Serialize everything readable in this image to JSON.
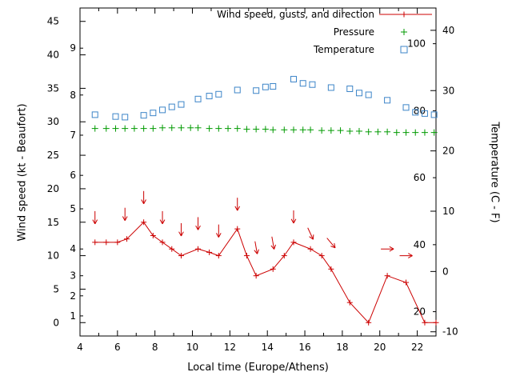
{
  "colors": {
    "wind": "#cc0000",
    "pressure": "#009a00",
    "temperature": "#3d85c8",
    "axis": "#000000",
    "background": "#ffffff"
  },
  "chart_data": {
    "type": "line",
    "title": "",
    "xlabel": "Local time (Europe/Athens)",
    "ylabel_left": "Wind speed (kt - Beaufort)",
    "ylabel_right": "Temperature (C - F)",
    "grid": false,
    "legend_position": "top-right-inside",
    "x_range": [
      4,
      23
    ],
    "x_major_ticks": [
      4,
      6,
      8,
      10,
      12,
      14,
      16,
      18,
      20,
      22
    ],
    "x_minor_ticks": [
      5,
      7,
      9,
      11,
      13,
      15,
      17,
      19,
      21,
      23
    ],
    "kt_range": [
      -2,
      47
    ],
    "kt_ticks": [
      0,
      5,
      10,
      15,
      20,
      25,
      30,
      35,
      40,
      45
    ],
    "beaufort_ticks": [
      {
        "label": "1",
        "kt": 1
      },
      {
        "label": "2",
        "kt": 4
      },
      {
        "label": "3",
        "kt": 7
      },
      {
        "label": "4",
        "kt": 11
      },
      {
        "label": "5",
        "kt": 17
      },
      {
        "label": "6",
        "kt": 22
      },
      {
        "label": "7",
        "kt": 28
      },
      {
        "label": "8",
        "kt": 34
      },
      {
        "label": "9",
        "kt": 41
      }
    ],
    "c_range": [
      -10.7,
      43.7
    ],
    "c_ticks": [
      -10,
      0,
      10,
      20,
      30,
      40
    ],
    "f_ticks": [
      20,
      40,
      60,
      80,
      100
    ],
    "legend": [
      {
        "label": "Wind speed, gusts, and direction",
        "marker": "line-plus",
        "color": "#cc0000"
      },
      {
        "label": "Pressure",
        "marker": "plus",
        "color": "#009a00"
      },
      {
        "label": "Temperature",
        "marker": "square",
        "color": "#3d85c8"
      }
    ],
    "series": {
      "wind_speed_kt": {
        "t": [
          4.8,
          5.4,
          6.0,
          6.5,
          7.4,
          7.9,
          8.4,
          8.9,
          9.4,
          10.3,
          10.9,
          11.4,
          12.4,
          12.9,
          13.4,
          14.3,
          14.9,
          15.4,
          16.3,
          16.9,
          17.4,
          18.4,
          19.4,
          20.4,
          21.4,
          22.4,
          23.0
        ],
        "kt": [
          12,
          12,
          12,
          12.5,
          15,
          13,
          12,
          11,
          10,
          11,
          10.5,
          10,
          14,
          10,
          7,
          8,
          10,
          12,
          11,
          10,
          8,
          3,
          0,
          7,
          6,
          0,
          0
        ]
      },
      "gust_direction_arrows": [
        {
          "t": 4.8,
          "kt": 15.7,
          "angle_deg": 90
        },
        {
          "t": 6.4,
          "kt": 16.2,
          "angle_deg": 90
        },
        {
          "t": 7.4,
          "kt": 18.7,
          "angle_deg": 90
        },
        {
          "t": 8.4,
          "kt": 15.7,
          "angle_deg": 90
        },
        {
          "t": 9.4,
          "kt": 13.9,
          "angle_deg": 90
        },
        {
          "t": 10.3,
          "kt": 14.8,
          "angle_deg": 90
        },
        {
          "t": 11.4,
          "kt": 13.7,
          "angle_deg": 90
        },
        {
          "t": 12.4,
          "kt": 17.7,
          "angle_deg": 90
        },
        {
          "t": 13.4,
          "kt": 11.2,
          "angle_deg": 80
        },
        {
          "t": 14.3,
          "kt": 11.9,
          "angle_deg": 80
        },
        {
          "t": 15.4,
          "kt": 15.8,
          "angle_deg": 90
        },
        {
          "t": 16.3,
          "kt": 13.3,
          "angle_deg": 65
        },
        {
          "t": 17.4,
          "kt": 11.9,
          "angle_deg": 50
        },
        {
          "t": 20.4,
          "kt": 11.0,
          "angle_deg": 0
        },
        {
          "t": 21.4,
          "kt": 10.0,
          "angle_deg": 0
        }
      ],
      "pressure_plotted_level_kt": {
        "t": [
          4.8,
          5.4,
          5.9,
          6.4,
          6.9,
          7.4,
          7.9,
          8.4,
          8.9,
          9.4,
          9.9,
          10.3,
          10.9,
          11.4,
          11.9,
          12.4,
          12.9,
          13.4,
          13.9,
          14.3,
          14.9,
          15.4,
          15.9,
          16.3,
          16.9,
          17.4,
          17.9,
          18.4,
          18.9,
          19.4,
          19.9,
          20.4,
          20.9,
          21.4,
          21.9,
          22.4,
          22.9
        ],
        "level": [
          29,
          29,
          29,
          29,
          29,
          29,
          29,
          29.1,
          29.1,
          29.1,
          29.1,
          29.1,
          29,
          29,
          29,
          29,
          28.9,
          28.9,
          28.9,
          28.8,
          28.8,
          28.8,
          28.8,
          28.8,
          28.7,
          28.7,
          28.7,
          28.6,
          28.6,
          28.5,
          28.5,
          28.5,
          28.4,
          28.4,
          28.4,
          28.4,
          28.4
        ]
      },
      "temperature_c": {
        "t": [
          4.8,
          5.9,
          6.4,
          7.4,
          7.9,
          8.4,
          8.9,
          9.4,
          10.3,
          10.9,
          11.4,
          12.4,
          13.4,
          13.9,
          14.3,
          15.4,
          15.9,
          16.4,
          17.4,
          18.4,
          18.9,
          19.4,
          20.4,
          21.4,
          21.9,
          22.4,
          22.9
        ],
        "c": [
          26.0,
          25.7,
          25.6,
          25.9,
          26.3,
          26.8,
          27.3,
          27.7,
          28.6,
          29.1,
          29.4,
          30.1,
          30.0,
          30.6,
          30.7,
          31.9,
          31.2,
          31.0,
          30.5,
          30.3,
          29.6,
          29.3,
          28.4,
          27.2,
          26.4,
          26.2,
          26.0
        ]
      }
    }
  }
}
